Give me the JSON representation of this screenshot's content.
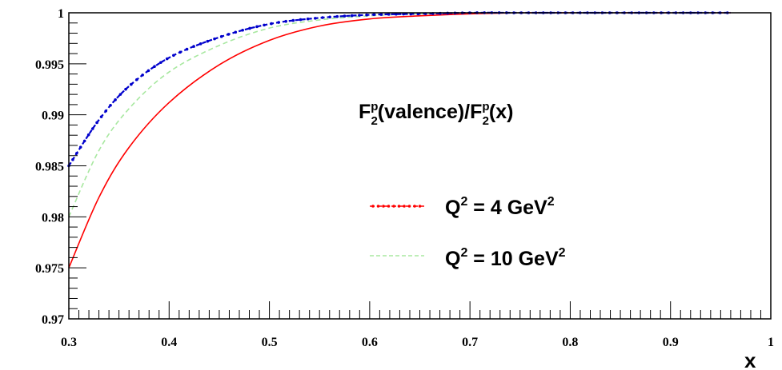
{
  "chart_data": {
    "type": "line",
    "title": {
      "base1": "F",
      "sup1": "p",
      "sub1": "2",
      "mid": "(valence)/F",
      "sup2": "p",
      "sub2": "2",
      "tail": "(x)"
    },
    "xlabel": "x",
    "ylabel": "",
    "xlim": [
      0.3,
      1.0
    ],
    "ylim": [
      0.97,
      1.0
    ],
    "x_ticks": [
      0.3,
      0.4,
      0.5,
      0.6,
      0.7,
      0.8,
      0.9,
      1
    ],
    "x_tick_labels": [
      "0.3",
      "0.4",
      "0.5",
      "0.6",
      "0.7",
      "0.8",
      "0.9",
      "1"
    ],
    "y_ticks": [
      0.97,
      0.975,
      0.98,
      0.985,
      0.99,
      0.995,
      1
    ],
    "y_tick_labels": [
      "0.97",
      "0.975",
      "0.98",
      "0.985",
      "0.99",
      "0.995",
      "1"
    ],
    "grid": false,
    "legend_position": "right",
    "legend": [
      {
        "label_base": "Q",
        "label_sup": "2",
        "label_mid": " = 4 GeV",
        "label_sup2": "2",
        "color": "#ff0000",
        "style": "dash-dot-marker"
      },
      {
        "label_base": "Q",
        "label_sup": "2",
        "label_mid": " = 10 GeV",
        "label_sup2": "2",
        "color": "#a8e8a0",
        "style": "dashed"
      }
    ],
    "series": [
      {
        "color": "#ff0000",
        "style": "solid",
        "x": [
          0.3,
          0.33,
          0.36,
          0.4,
          0.45,
          0.5,
          0.55,
          0.6,
          0.65,
          0.7,
          0.75,
          0.8,
          0.85,
          0.9,
          0.96
        ],
        "y": [
          0.975,
          0.9819,
          0.9868,
          0.9912,
          0.9949,
          0.9973,
          0.9987,
          0.9994,
          0.9997,
          0.9999,
          1.0,
          1.0,
          1.0,
          1.0,
          1.0
        ]
      },
      {
        "color": "#a8e8a0",
        "style": "dashed",
        "x": [
          0.3,
          0.33,
          0.36,
          0.4,
          0.45,
          0.5,
          0.55,
          0.6,
          0.65,
          0.7,
          0.75,
          0.8,
          0.85,
          0.9,
          0.96
        ],
        "y": [
          0.98,
          0.9865,
          0.9906,
          0.9942,
          0.9968,
          0.9985,
          0.9993,
          0.9997,
          0.9999,
          1.0,
          1.0,
          1.0,
          1.0,
          1.0,
          1.0
        ]
      },
      {
        "color": "#0000cc",
        "style": "dotted-marker",
        "x": [
          0.3,
          0.33,
          0.36,
          0.4,
          0.45,
          0.5,
          0.55,
          0.6,
          0.65,
          0.7,
          0.75,
          0.8,
          0.85,
          0.9,
          0.96
        ],
        "y": [
          0.985,
          0.9895,
          0.9928,
          0.9956,
          0.9976,
          0.9989,
          0.9995,
          0.9998,
          0.9999,
          1.0,
          1.0,
          1.0,
          1.0,
          1.0,
          1.0
        ]
      }
    ]
  }
}
